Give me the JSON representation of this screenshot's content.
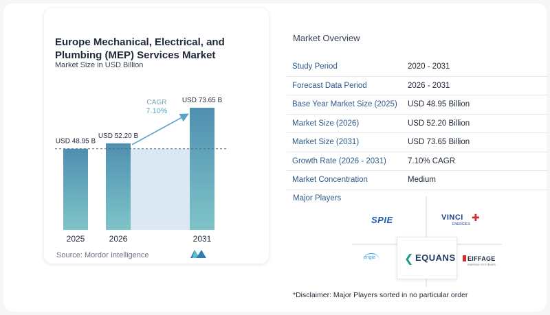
{
  "chart": {
    "title": "Europe Mechanical, Electrical, and Plumbing (MEP) Services Market",
    "subtitle": "Market Size in USD Billion",
    "source": "Source: Mordor Intelligence",
    "cagr_label": "CAGR",
    "cagr_value": "7.10%"
  },
  "chart_data": {
    "type": "bar",
    "categories": [
      "2025",
      "2026",
      "2031"
    ],
    "values": [
      48.95,
      52.2,
      73.65
    ],
    "data_labels": [
      "USD 48.95 B",
      "USD 52.20 B",
      "USD 73.65 B"
    ],
    "title": "Europe Mechanical, Electrical, and Plumbing (MEP) Services Market",
    "ylabel": "Market Size in USD Billion",
    "annotation": "CAGR 7.10%",
    "ylim": [
      0,
      73.65
    ],
    "grid": false,
    "colors": {
      "bar_top": "#4f8fb0",
      "bar_bottom": "#7fc4c9",
      "band": "#dbe7f3",
      "arrow": "#58a4c9",
      "cagr_text": "#5aa6c6"
    }
  },
  "overview": {
    "title": "Market Overview",
    "rows": [
      {
        "key": "Study Period",
        "value": "2020 - 2031"
      },
      {
        "key": "Forecast Data Period",
        "value": "2026 - 2031"
      },
      {
        "key": "Base Year Market Size (2025)",
        "value": "USD 48.95 Billion"
      },
      {
        "key": "Market Size (2026)",
        "value": "USD 52.20 Billion"
      },
      {
        "key": "Market Size (2031)",
        "value": "USD 73.65 Billion"
      },
      {
        "key": "Growth Rate (2026 - 2031)",
        "value": "7.10% CAGR"
      },
      {
        "key": "Market Concentration",
        "value": "Medium"
      }
    ]
  },
  "players": {
    "title": "Major Players",
    "logos": {
      "spie": "SPIE",
      "vinci": "VINCI",
      "vinci_sub": "ENERGIES",
      "engie": "engie",
      "equans": "EQUANS",
      "eiffage": "EIFFAGE",
      "eiffage_sub": "ÉNERGIE SYSTÈMES"
    },
    "disclaimer": "*Disclaimer: Major Players sorted in no particular order"
  }
}
